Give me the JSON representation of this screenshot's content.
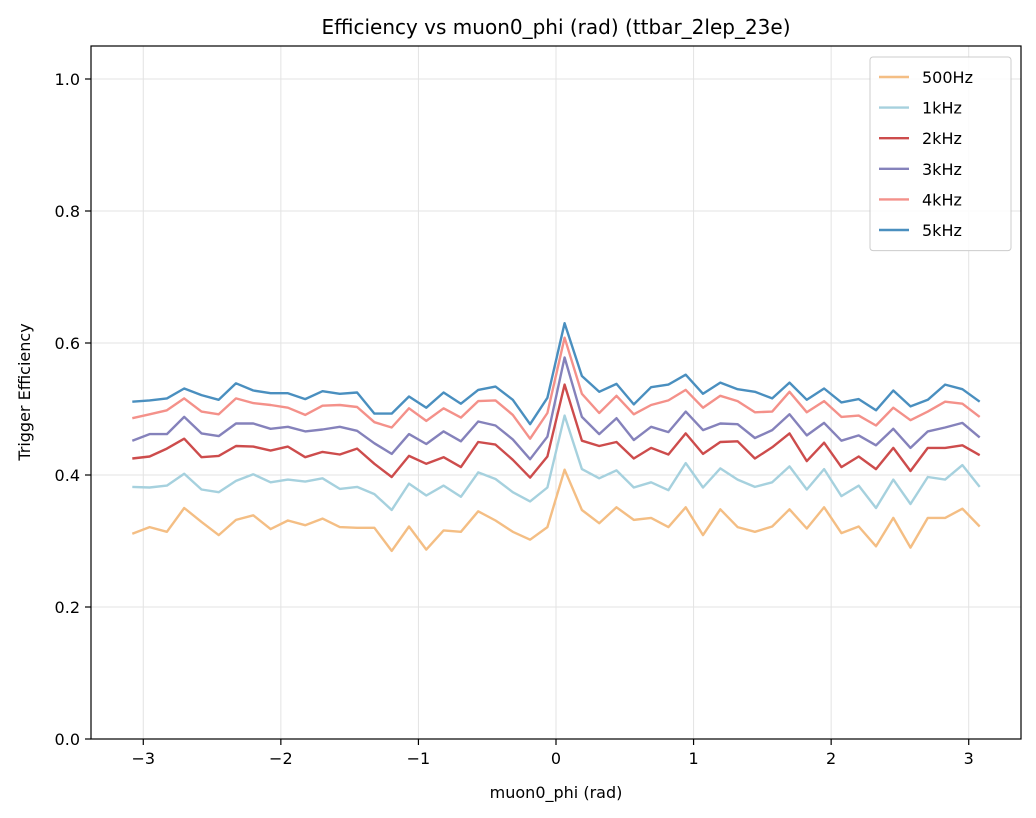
{
  "chart_data": {
    "type": "line",
    "title": "Efficiency vs muon0_phi (rad) (ttbar_2lep_23e)",
    "xlabel": "muon0_phi (rad)",
    "ylabel": "Trigger Efficiency",
    "xlim": [
      -3.38,
      3.38
    ],
    "ylim": [
      0.0,
      1.05
    ],
    "xticks": [
      -3,
      -2,
      -1,
      0,
      1,
      2,
      3
    ],
    "xtick_labels": [
      "−3",
      "−2",
      "−1",
      "0",
      "1",
      "2",
      "3"
    ],
    "yticks": [
      0.0,
      0.2,
      0.4,
      0.6,
      0.8,
      1.0
    ],
    "ytick_labels": [
      "0.0",
      "0.2",
      "0.4",
      "0.6",
      "0.8",
      "1.0"
    ],
    "grid": true,
    "legend_position": "top-right",
    "x_range": [
      -3.08,
      3.08
    ],
    "series": [
      {
        "name": "500Hz",
        "color": "#f4be84",
        "values": [
          0.311,
          0.321,
          0.314,
          0.35,
          0.329,
          0.309,
          0.332,
          0.339,
          0.318,
          0.331,
          0.324,
          0.334,
          0.321,
          0.32,
          0.32,
          0.285,
          0.322,
          0.287,
          0.316,
          0.314,
          0.345,
          0.331,
          0.314,
          0.302,
          0.321,
          0.408,
          0.347,
          0.327,
          0.351,
          0.332,
          0.335,
          0.321,
          0.351,
          0.309,
          0.348,
          0.321,
          0.314,
          0.322,
          0.348,
          0.319,
          0.351,
          0.312,
          0.322,
          0.292,
          0.335,
          0.29,
          0.335,
          0.335,
          0.349,
          0.322
        ]
      },
      {
        "name": "1kHz",
        "color": "#a6d1de",
        "values": [
          0.382,
          0.381,
          0.384,
          0.402,
          0.378,
          0.374,
          0.391,
          0.401,
          0.389,
          0.393,
          0.39,
          0.395,
          0.379,
          0.382,
          0.371,
          0.347,
          0.387,
          0.369,
          0.384,
          0.367,
          0.404,
          0.394,
          0.374,
          0.36,
          0.381,
          0.49,
          0.409,
          0.395,
          0.407,
          0.381,
          0.389,
          0.377,
          0.418,
          0.381,
          0.41,
          0.393,
          0.382,
          0.389,
          0.413,
          0.378,
          0.409,
          0.368,
          0.384,
          0.35,
          0.393,
          0.356,
          0.397,
          0.393,
          0.415,
          0.382
        ]
      },
      {
        "name": "2kHz",
        "color": "#cd4c4c",
        "values": [
          0.425,
          0.428,
          0.44,
          0.455,
          0.427,
          0.429,
          0.444,
          0.443,
          0.437,
          0.443,
          0.427,
          0.435,
          0.431,
          0.44,
          0.417,
          0.397,
          0.429,
          0.417,
          0.427,
          0.412,
          0.45,
          0.446,
          0.423,
          0.396,
          0.428,
          0.537,
          0.452,
          0.444,
          0.45,
          0.425,
          0.441,
          0.431,
          0.463,
          0.432,
          0.45,
          0.451,
          0.425,
          0.442,
          0.463,
          0.421,
          0.449,
          0.412,
          0.428,
          0.409,
          0.441,
          0.406,
          0.441,
          0.441,
          0.445,
          0.43
        ]
      },
      {
        "name": "3kHz",
        "color": "#8582bb",
        "values": [
          0.452,
          0.462,
          0.462,
          0.488,
          0.463,
          0.459,
          0.478,
          0.478,
          0.47,
          0.473,
          0.466,
          0.469,
          0.473,
          0.467,
          0.448,
          0.432,
          0.462,
          0.447,
          0.466,
          0.451,
          0.481,
          0.475,
          0.454,
          0.424,
          0.458,
          0.578,
          0.488,
          0.462,
          0.486,
          0.453,
          0.473,
          0.465,
          0.496,
          0.468,
          0.478,
          0.477,
          0.456,
          0.468,
          0.492,
          0.46,
          0.479,
          0.452,
          0.46,
          0.445,
          0.47,
          0.441,
          0.466,
          0.472,
          0.479,
          0.457
        ]
      },
      {
        "name": "4kHz",
        "color": "#f4918a",
        "values": [
          0.486,
          0.492,
          0.498,
          0.516,
          0.496,
          0.492,
          0.516,
          0.509,
          0.506,
          0.502,
          0.491,
          0.505,
          0.506,
          0.503,
          0.48,
          0.472,
          0.501,
          0.482,
          0.501,
          0.487,
          0.512,
          0.513,
          0.491,
          0.455,
          0.494,
          0.608,
          0.523,
          0.494,
          0.52,
          0.492,
          0.506,
          0.513,
          0.529,
          0.502,
          0.52,
          0.512,
          0.495,
          0.496,
          0.526,
          0.495,
          0.512,
          0.488,
          0.49,
          0.475,
          0.502,
          0.483,
          0.496,
          0.511,
          0.508,
          0.488
        ]
      },
      {
        "name": "5kHz",
        "color": "#4a8fbf",
        "values": [
          0.511,
          0.513,
          0.516,
          0.531,
          0.521,
          0.514,
          0.539,
          0.528,
          0.524,
          0.524,
          0.515,
          0.527,
          0.523,
          0.525,
          0.493,
          0.493,
          0.519,
          0.502,
          0.525,
          0.508,
          0.529,
          0.534,
          0.514,
          0.477,
          0.517,
          0.63,
          0.55,
          0.526,
          0.538,
          0.507,
          0.533,
          0.537,
          0.552,
          0.523,
          0.54,
          0.53,
          0.526,
          0.516,
          0.54,
          0.514,
          0.531,
          0.51,
          0.515,
          0.498,
          0.528,
          0.504,
          0.514,
          0.537,
          0.53,
          0.511
        ]
      }
    ]
  }
}
